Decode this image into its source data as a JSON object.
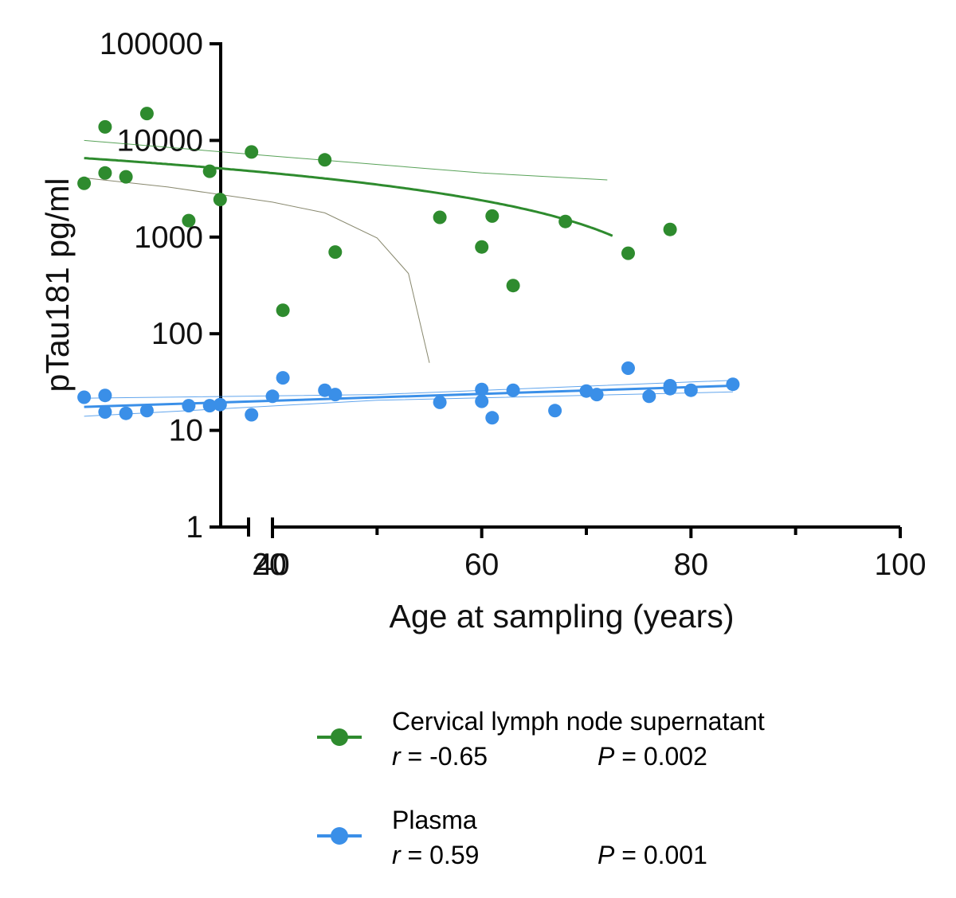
{
  "chart_data": {
    "type": "scatter",
    "title": "",
    "xlabel": "Age at sampling (years)",
    "ylabel": "pTau181 pg/ml",
    "xlim": [
      15,
      100
    ],
    "ylim": [
      1,
      100000
    ],
    "y_scale": "log",
    "x_axis_break": true,
    "x_ticks": [
      20,
      40,
      60,
      80,
      100
    ],
    "x_tick_labels": [
      "20",
      "40",
      "60",
      "80",
      "100"
    ],
    "y_ticks": [
      1,
      10,
      100,
      1000,
      10000,
      100000
    ],
    "y_tick_labels": [
      "1",
      "10",
      "100",
      "1000",
      "10000",
      "100000"
    ],
    "grid": false,
    "legend_position": "bottom",
    "series": [
      {
        "name": "Cervical lymph node supernatant",
        "color": "#2e8b2e",
        "r_label": "r",
        "r_text": " = -0.65",
        "p_label": "P",
        "p_text": " = 0.002",
        "points": [
          [
            22,
            3600
          ],
          [
            24,
            13800
          ],
          [
            24,
            4600
          ],
          [
            26,
            4200
          ],
          [
            28,
            19000
          ],
          [
            32,
            1480
          ],
          [
            34,
            4800
          ],
          [
            35,
            2450
          ],
          [
            38,
            7600
          ],
          [
            41,
            175
          ],
          [
            45,
            6300
          ],
          [
            46,
            700
          ],
          [
            56,
            1600
          ],
          [
            60,
            790
          ],
          [
            61,
            1650
          ],
          [
            63,
            315
          ],
          [
            68,
            1450
          ],
          [
            74,
            680
          ],
          [
            78,
            1200
          ]
        ],
        "fit": {
          "slope": -109.5,
          "intercept": 8969,
          "x_start": 22,
          "x_end": 72.5,
          "ci_upper": [
            [
              22,
              10000
            ],
            [
              40,
              6900
            ],
            [
              60,
              4600
            ],
            [
              72,
              3900
            ]
          ],
          "ci_lower": [
            [
              22,
              4100
            ],
            [
              30,
              3300
            ],
            [
              40,
              2300
            ],
            [
              45,
              1780
            ],
            [
              50,
              980
            ],
            [
              53,
              420
            ],
            [
              55,
              50
            ]
          ]
        }
      },
      {
        "name": "Plasma",
        "color": "#3a8fe8",
        "r_label": "r",
        "r_text": " = 0.59",
        "p_label": "P",
        "p_text": " = 0.001",
        "points": [
          [
            22,
            22
          ],
          [
            24,
            23
          ],
          [
            24,
            15.5
          ],
          [
            26,
            15
          ],
          [
            28,
            16
          ],
          [
            32,
            18
          ],
          [
            34,
            18
          ],
          [
            35,
            18.5
          ],
          [
            38,
            14.5
          ],
          [
            40,
            22.5
          ],
          [
            41,
            35
          ],
          [
            45,
            26
          ],
          [
            46,
            23.5
          ],
          [
            56,
            19.5
          ],
          [
            60,
            26.5
          ],
          [
            60,
            20
          ],
          [
            61,
            13.5
          ],
          [
            63,
            26
          ],
          [
            67,
            16
          ],
          [
            70,
            25.5
          ],
          [
            71,
            23.5
          ],
          [
            74,
            44
          ],
          [
            76,
            22.5
          ],
          [
            78,
            29
          ],
          [
            78,
            27
          ],
          [
            80,
            26
          ],
          [
            84,
            30
          ]
        ],
        "fit": {
          "log_line": [
            [
              22,
              17.5
            ],
            [
              84,
              29
            ]
          ],
          "ci_upper": [
            [
              22,
              21.5
            ],
            [
              50,
              23.5
            ],
            [
              84,
              33
            ]
          ],
          "ci_lower": [
            [
              22,
              14
            ],
            [
              50,
              20.5
            ],
            [
              84,
              25
            ]
          ]
        }
      }
    ]
  }
}
